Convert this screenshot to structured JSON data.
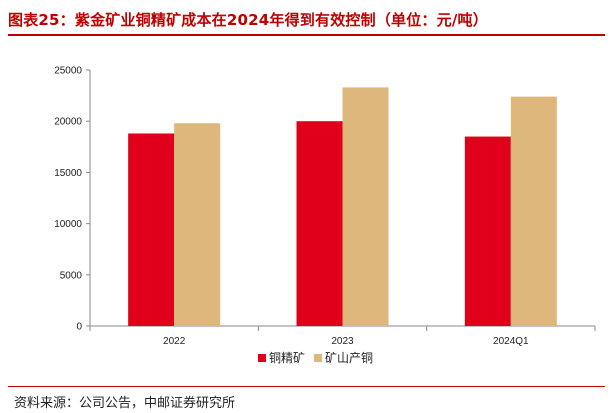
{
  "header": {
    "title": "图表25：紫金矿业铜精矿成本在2024年得到有效控制（单位：元/吨）"
  },
  "footer": {
    "source": "资料来源：公司公告，中邮证券研究所"
  },
  "colors": {
    "title": "#c00000",
    "series_1": "#e0001b",
    "series_2": "#deb77d"
  },
  "chart_data": {
    "type": "bar",
    "categories": [
      "2022",
      "2023",
      "2024Q1"
    ],
    "series": [
      {
        "name": "铜精矿",
        "values": [
          18800,
          20000,
          18500
        ]
      },
      {
        "name": "矿山产铜",
        "values": [
          19800,
          23300,
          22400
        ]
      }
    ],
    "ylim": [
      0,
      25000
    ],
    "yticks": [
      0,
      5000,
      10000,
      15000,
      20000,
      25000
    ],
    "grid": false,
    "legend": "bottom-center"
  }
}
